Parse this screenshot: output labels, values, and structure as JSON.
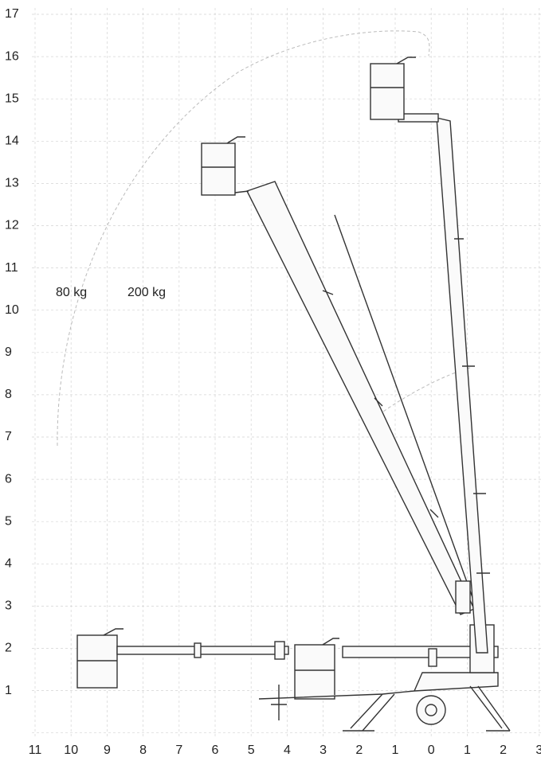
{
  "diagram": {
    "y_axis_labels": [
      "17",
      "16",
      "15",
      "14",
      "13",
      "12",
      "11",
      "10",
      "9",
      "8",
      "7",
      "6",
      "5",
      "4",
      "3",
      "2",
      "1"
    ],
    "x_axis_labels": [
      "11",
      "10",
      "9",
      "8",
      "7",
      "6",
      "5",
      "4",
      "3",
      "2",
      "1",
      "0",
      "1",
      "2",
      "3"
    ],
    "annotations": [
      "80 kg",
      "200 kg"
    ]
  }
}
